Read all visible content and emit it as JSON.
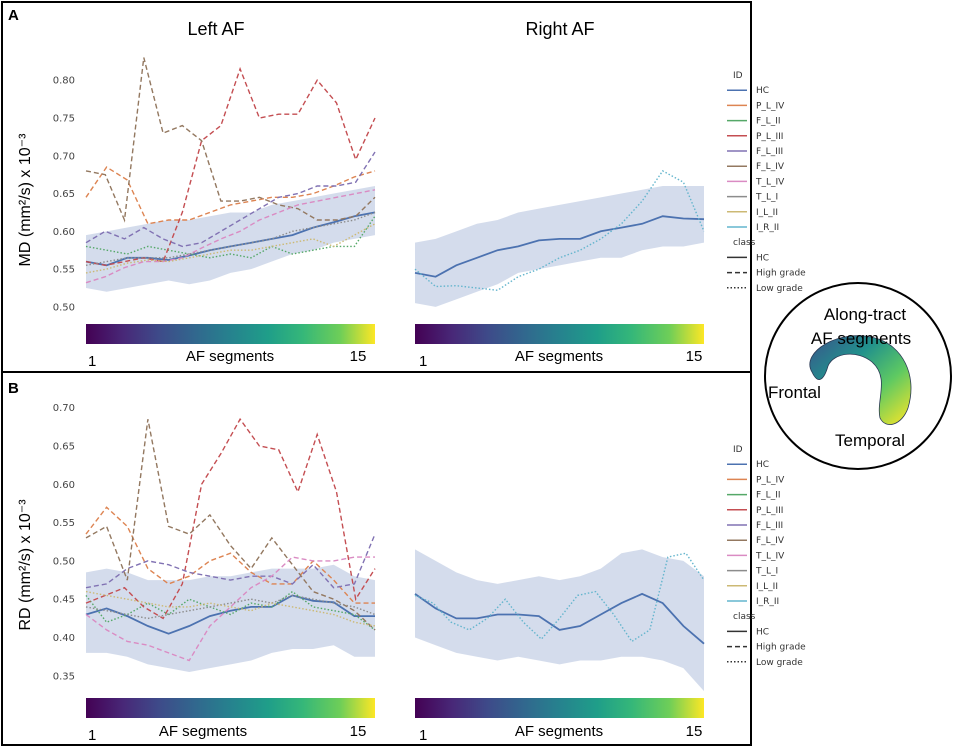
{
  "colors": {
    "HC": "#4c72b0",
    "P_L_IV": "#dd8452",
    "F_L_II": "#55a868",
    "P_L_III": "#c44e52",
    "F_L_III": "#8172b3",
    "F_L_IV": "#937860",
    "T_L_IV": "#da8bc3",
    "T_L_I": "#8c8c8c",
    "I_L_II": "#ccb974",
    "I_R_II": "#64b5cd",
    "band": "#b7c4df"
  },
  "legend": {
    "id_title": "ID",
    "ids": [
      "HC",
      "P_L_IV",
      "F_L_II",
      "P_L_III",
      "F_L_III",
      "F_L_IV",
      "T_L_IV",
      "T_L_I",
      "I_L_II",
      "I_R_II"
    ],
    "class_title": "class",
    "classes": [
      "HC",
      "High grade",
      "Low grade"
    ]
  },
  "colorbar": {
    "label": "AF segments",
    "min_label": "1",
    "max_label": "15"
  },
  "inset": {
    "title1": "Along-tract",
    "title2": "AF segments",
    "frontal": "Frontal",
    "temporal": "Temporal"
  },
  "chart_data": [
    {
      "panel": "A",
      "type": "line",
      "title_left": "Left AF",
      "title_right": "Right AF",
      "ylabel": "MD (mm²/s) x 10⁻³",
      "ylim": [
        0.48,
        0.84
      ],
      "yticks": [
        "0.50",
        "0.55",
        "0.60",
        "0.65",
        "0.70",
        "0.75",
        "0.80"
      ],
      "left_band": {
        "lower": [
          0.525,
          0.52,
          0.525,
          0.53,
          0.535,
          0.53,
          0.535,
          0.545,
          0.55,
          0.56,
          0.57,
          0.575,
          0.585,
          0.59,
          0.595
        ],
        "upper": [
          0.595,
          0.6,
          0.605,
          0.61,
          0.615,
          0.615,
          0.62,
          0.625,
          0.625,
          0.635,
          0.64,
          0.645,
          0.65,
          0.655,
          0.66
        ]
      },
      "left_series": [
        {
          "id": "HC",
          "class": "HC",
          "values": [
            0.56,
            0.555,
            0.565,
            0.565,
            0.562,
            0.568,
            0.575,
            0.58,
            0.585,
            0.59,
            0.595,
            0.605,
            0.612,
            0.62,
            0.625
          ]
        },
        {
          "id": "P_L_IV",
          "class": "High grade",
          "values": [
            0.645,
            0.685,
            0.668,
            0.61,
            0.615,
            0.615,
            0.625,
            0.635,
            0.64,
            0.645,
            0.645,
            0.65,
            0.66,
            0.672,
            0.68
          ]
        },
        {
          "id": "F_L_II",
          "class": "Low grade",
          "values": [
            0.58,
            0.575,
            0.57,
            0.58,
            0.575,
            0.57,
            0.565,
            0.57,
            0.565,
            0.58,
            0.57,
            0.575,
            0.58,
            0.58,
            0.62
          ]
        },
        {
          "id": "P_L_III",
          "class": "High grade",
          "values": [
            0.56,
            0.555,
            0.56,
            0.565,
            0.56,
            0.625,
            0.72,
            0.74,
            0.815,
            0.75,
            0.755,
            0.755,
            0.8,
            0.77,
            0.695,
            0.75
          ]
        },
        {
          "id": "F_L_III",
          "class": "High grade",
          "values": [
            0.585,
            0.6,
            0.59,
            0.605,
            0.59,
            0.58,
            0.585,
            0.6,
            0.615,
            0.63,
            0.645,
            0.65,
            0.66,
            0.66,
            0.665,
            0.705
          ]
        },
        {
          "id": "F_L_IV",
          "class": "High grade",
          "values": [
            0.68,
            0.675,
            0.615,
            0.83,
            0.73,
            0.74,
            0.72,
            0.64,
            0.64,
            0.645,
            0.635,
            0.63,
            0.615,
            0.615,
            0.62,
            0.645
          ]
        },
        {
          "id": "T_L_IV",
          "class": "High grade",
          "values": [
            0.532,
            0.54,
            0.552,
            0.56,
            0.56,
            0.565,
            0.578,
            0.59,
            0.6,
            0.615,
            0.625,
            0.635,
            0.64,
            0.645,
            0.65,
            0.655
          ]
        },
        {
          "id": "T_L_I",
          "class": "Low grade",
          "values": [
            0.555,
            0.56,
            0.565,
            0.565,
            0.565,
            0.57,
            0.575,
            0.58,
            0.585,
            0.59,
            0.6,
            0.605,
            0.61,
            0.615,
            0.625
          ]
        },
        {
          "id": "I_L_II",
          "class": "Low grade",
          "values": [
            0.545,
            0.55,
            0.558,
            0.562,
            0.56,
            0.565,
            0.57,
            0.575,
            0.575,
            0.58,
            0.585,
            0.59,
            0.58,
            0.595,
            0.61
          ]
        }
      ],
      "right_band": {
        "lower": [
          0.505,
          0.5,
          0.51,
          0.52,
          0.53,
          0.545,
          0.55,
          0.555,
          0.56,
          0.565,
          0.565,
          0.575,
          0.58,
          0.58,
          0.585
        ],
        "upper": [
          0.585,
          0.59,
          0.6,
          0.61,
          0.615,
          0.625,
          0.63,
          0.635,
          0.64,
          0.645,
          0.65,
          0.655,
          0.66,
          0.66,
          0.66
        ]
      },
      "right_series": [
        {
          "id": "HC",
          "class": "HC",
          "values": [
            0.545,
            0.54,
            0.555,
            0.565,
            0.575,
            0.58,
            0.588,
            0.59,
            0.59,
            0.6,
            0.605,
            0.61,
            0.62,
            0.617,
            0.616
          ]
        },
        {
          "id": "I_R_II",
          "class": "Low grade",
          "values": [
            0.55,
            0.527,
            0.528,
            0.525,
            0.522,
            0.54,
            0.55,
            0.565,
            0.575,
            0.59,
            0.61,
            0.64,
            0.68,
            0.665,
            0.6
          ]
        }
      ]
    },
    {
      "panel": "B",
      "type": "line",
      "ylabel": "RD (mm²/s) x 10⁻³",
      "ylim": [
        0.325,
        0.71
      ],
      "yticks": [
        "0.35",
        "0.40",
        "0.45",
        "0.50",
        "0.55",
        "0.60",
        "0.65",
        "0.70"
      ],
      "left_band": {
        "lower": [
          0.38,
          0.38,
          0.375,
          0.365,
          0.36,
          0.355,
          0.36,
          0.365,
          0.37,
          0.38,
          0.385,
          0.385,
          0.39,
          0.375,
          0.375
        ],
        "upper": [
          0.485,
          0.49,
          0.485,
          0.475,
          0.475,
          0.475,
          0.48,
          0.48,
          0.485,
          0.49,
          0.49,
          0.49,
          0.495,
          0.48,
          0.475
        ]
      },
      "left_series": [
        {
          "id": "HC",
          "class": "HC",
          "values": [
            0.43,
            0.438,
            0.428,
            0.415,
            0.405,
            0.415,
            0.428,
            0.435,
            0.44,
            0.44,
            0.455,
            0.448,
            0.446,
            0.428,
            0.428
          ]
        },
        {
          "id": "P_L_IV",
          "class": "High grade",
          "values": [
            0.535,
            0.57,
            0.545,
            0.49,
            0.47,
            0.48,
            0.5,
            0.51,
            0.485,
            0.47,
            0.47,
            0.5,
            0.475,
            0.445,
            0.445
          ]
        },
        {
          "id": "F_L_II",
          "class": "Low grade",
          "values": [
            0.455,
            0.42,
            0.43,
            0.445,
            0.43,
            0.45,
            0.44,
            0.43,
            0.445,
            0.44,
            0.46,
            0.44,
            0.435,
            0.43,
            0.41
          ]
        },
        {
          "id": "P_L_III",
          "class": "High grade",
          "values": [
            0.445,
            0.455,
            0.465,
            0.44,
            0.425,
            0.47,
            0.6,
            0.64,
            0.685,
            0.65,
            0.645,
            0.59,
            0.665,
            0.59,
            0.45,
            0.49
          ]
        },
        {
          "id": "F_L_III",
          "class": "High grade",
          "values": [
            0.465,
            0.47,
            0.49,
            0.5,
            0.495,
            0.485,
            0.48,
            0.475,
            0.48,
            0.48,
            0.47,
            0.495,
            0.465,
            0.47,
            0.535
          ]
        },
        {
          "id": "F_L_IV",
          "class": "High grade",
          "values": [
            0.53,
            0.545,
            0.475,
            0.685,
            0.545,
            0.535,
            0.56,
            0.52,
            0.49,
            0.53,
            0.495,
            0.46,
            0.45,
            0.435,
            0.41
          ]
        },
        {
          "id": "T_L_IV",
          "class": "High grade",
          "values": [
            0.43,
            0.41,
            0.395,
            0.39,
            0.38,
            0.37,
            0.415,
            0.44,
            0.465,
            0.48,
            0.505,
            0.5,
            0.5,
            0.505,
            0.505
          ]
        },
        {
          "id": "T_L_I",
          "class": "Low grade",
          "values": [
            0.44,
            0.435,
            0.43,
            0.425,
            0.43,
            0.435,
            0.44,
            0.445,
            0.45,
            0.445,
            0.455,
            0.45,
            0.445,
            0.44,
            0.43
          ]
        },
        {
          "id": "I_L_II",
          "class": "Low grade",
          "values": [
            0.46,
            0.455,
            0.45,
            0.445,
            0.44,
            0.44,
            0.445,
            0.44,
            0.435,
            0.445,
            0.44,
            0.435,
            0.43,
            0.42,
            0.415
          ]
        }
      ],
      "right_band": {
        "lower": [
          0.4,
          0.39,
          0.38,
          0.375,
          0.37,
          0.375,
          0.37,
          0.365,
          0.37,
          0.37,
          0.375,
          0.375,
          0.37,
          0.36,
          0.33
        ],
        "upper": [
          0.515,
          0.5,
          0.485,
          0.475,
          0.47,
          0.475,
          0.48,
          0.475,
          0.48,
          0.49,
          0.51,
          0.515,
          0.505,
          0.5,
          0.48
        ]
      },
      "right_series": [
        {
          "id": "HC",
          "class": "HC",
          "values": [
            0.457,
            0.438,
            0.425,
            0.425,
            0.43,
            0.43,
            0.428,
            0.41,
            0.415,
            0.43,
            0.445,
            0.457,
            0.445,
            0.415,
            0.392
          ]
        },
        {
          "id": "I_R_II",
          "class": "Low grade",
          "values": [
            0.455,
            0.445,
            0.42,
            0.41,
            0.425,
            0.45,
            0.42,
            0.398,
            0.425,
            0.455,
            0.46,
            0.43,
            0.395,
            0.41,
            0.505,
            0.51,
            0.475
          ]
        }
      ]
    }
  ]
}
